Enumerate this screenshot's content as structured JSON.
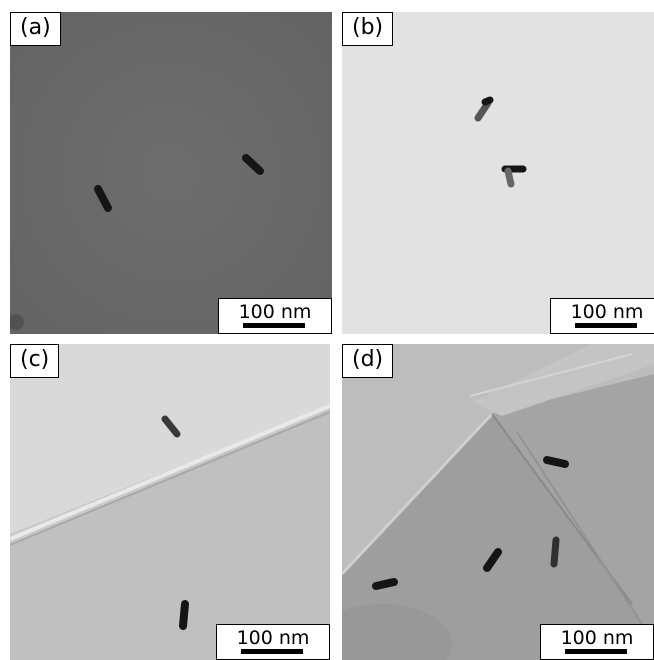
{
  "panels": [
    {
      "label": "(a)",
      "scale": "100 nm"
    },
    {
      "label": "(b)",
      "scale": "100 nm"
    },
    {
      "label": "(c)",
      "scale": "100 nm"
    },
    {
      "label": "(d)",
      "scale": "100 nm"
    }
  ],
  "colors": {
    "panel_a_background": "#6b6b6b",
    "panel_b_background": "#e2e2e2",
    "panel_c_background": "#c7c7c7",
    "panel_d_background": "#a8a8a8",
    "nanorod": "#151515"
  }
}
